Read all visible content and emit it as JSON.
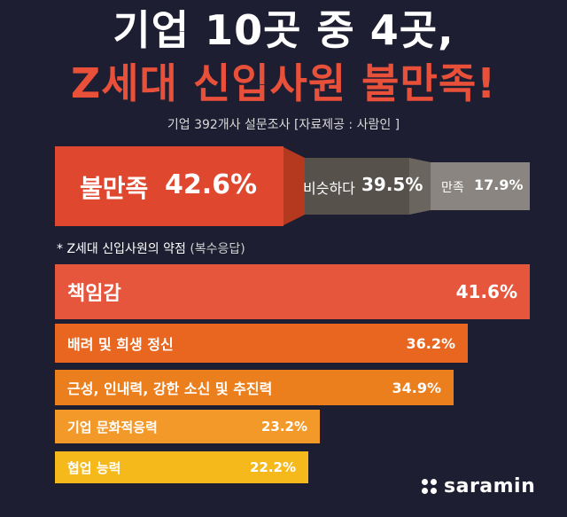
{
  "title_line1": "기업 10곳 중 4곳,",
  "title_line2": "Z세대 신입사원 불만족!",
  "subtitle": "기업 392개사 설문조사 [자료제공 : 사람인 ]",
  "colors": {
    "background": "#1e1e32",
    "accent_red": "#e8503a",
    "funnel_gray": "#56514b",
    "funnel_light": "#8a8580"
  },
  "chart_data": [
    {
      "type": "bar",
      "categories": [
        "불만족",
        "비슷하다",
        "만족"
      ],
      "values": [
        42.6,
        39.5,
        17.9
      ],
      "value_labels": [
        "42.6%",
        "39.5%",
        "17.9%"
      ]
    },
    {
      "type": "bar",
      "title": "* Z세대 신입사원의 약점",
      "title_note": "(복수응답)",
      "categories": [
        "책임감",
        "배려 및 희생 정신",
        "근성, 인내력, 강한 소신 및 추진력",
        "기업 문화적응력",
        "협업 능력"
      ],
      "values": [
        41.6,
        36.2,
        34.9,
        23.2,
        22.2
      ],
      "value_labels": [
        "41.6%",
        "36.2%",
        "34.9%",
        "23.2%",
        "22.2%"
      ],
      "bar_colors": [
        "#e5563d",
        "#e8661f",
        "#ec7f1d",
        "#f3992a",
        "#f5b91c"
      ]
    }
  ],
  "logo": {
    "text": "saramin",
    "icon": "saramin-dots-icon"
  }
}
